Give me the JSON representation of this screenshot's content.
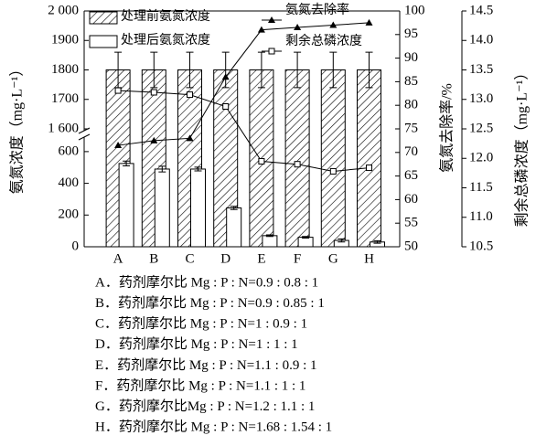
{
  "chart_data": {
    "type": "bar-line",
    "categories": [
      "A",
      "B",
      "C",
      "D",
      "E",
      "F",
      "G",
      "H"
    ],
    "y_label": "氨氮浓度（mg·L⁻¹）",
    "y2_label": "氨氮去除率/%",
    "y3_label": "剩余总磷浓度（mg·L⁻¹）",
    "ylim": [
      0,
      2000
    ],
    "ybreak": [
      680,
      1600
    ],
    "yticks": [
      0,
      200,
      400,
      600,
      {
        "value": 1600,
        "label": "1 600"
      },
      1700,
      1800,
      1900,
      {
        "value": 2000,
        "label": "2 000"
      }
    ],
    "y2lim": [
      50,
      100
    ],
    "y2ticks": [
      50,
      55,
      60,
      65,
      70,
      75,
      80,
      85,
      90,
      95,
      100
    ],
    "y3lim": [
      10.5,
      14.5
    ],
    "y3ticks": [
      10.5,
      {
        "value": 11,
        "label": "11.0"
      },
      11.5,
      {
        "value": 12,
        "label": "12.0"
      },
      12.5,
      {
        "value": 13,
        "label": "13.0"
      },
      13.5,
      {
        "value": 14,
        "label": "14.0"
      },
      14.5
    ],
    "series": [
      {
        "name": "处理前氨氮浓度",
        "type": "bar",
        "pattern": "hatch",
        "values": [
          1800,
          1800,
          1800,
          1800,
          1800,
          1800,
          1800,
          1800
        ],
        "errors": [
          60,
          60,
          60,
          60,
          60,
          60,
          60,
          60
        ]
      },
      {
        "name": "处理后氨氮浓度",
        "type": "bar",
        "pattern": "open",
        "values": [
          525,
          490,
          490,
          245,
          70,
          60,
          40,
          30
        ],
        "errors": [
          15,
          18,
          12,
          10,
          5,
          5,
          10,
          8
        ]
      },
      {
        "name": "氨氮去除率",
        "type": "line",
        "marker": "triangle",
        "axis": "y2",
        "values": [
          71.5,
          72.5,
          73,
          86,
          96,
          96.5,
          97,
          97.5
        ]
      },
      {
        "name": "剩余总磷浓度",
        "type": "line",
        "marker": "square",
        "axis": "y3",
        "values": [
          13.15,
          13.12,
          13.08,
          12.88,
          11.95,
          11.9,
          11.78,
          11.84
        ]
      }
    ]
  },
  "notes": [
    "A．药剂摩尔比 Mg : P : N=0.9 : 0.8 : 1",
    "B．药剂摩尔比 Mg : P : N=0.9 : 0.85 : 1",
    "C．药剂摩尔比 Mg : P : N=1 : 0.9 : 1",
    "D．药剂摩尔比 Mg : P : N=1 : 1 : 1",
    "E．药剂摩尔比 Mg : P : N=1.1 : 0.9 : 1",
    "F．药剂摩尔比 Mg : P : N=1.1 : 1 : 1",
    "G．药剂摩尔比Mg : P : N=1.2 : 1.1 : 1",
    "H．药剂摩尔比 Mg : P : N=1.68 : 1.54 : 1"
  ]
}
